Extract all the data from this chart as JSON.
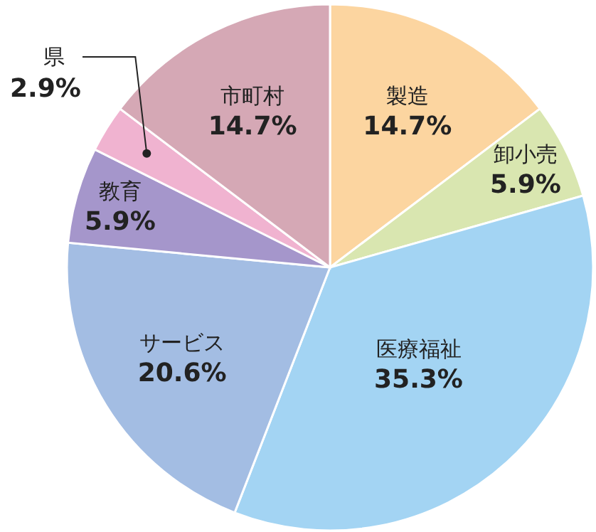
{
  "chart_data": {
    "type": "pie",
    "categories": [
      "製造",
      "卸小売",
      "医療福祉",
      "サービス",
      "教育",
      "県",
      "市町村"
    ],
    "values": [
      14.7,
      5.9,
      35.3,
      20.6,
      5.9,
      2.9,
      14.7
    ],
    "value_labels": [
      "14.7%",
      "5.9%",
      "35.3%",
      "20.6%",
      "5.9%",
      "2.9%",
      "14.7%"
    ],
    "colors": [
      "#fcd5a0",
      "#d9e6b0",
      "#a3d4f3",
      "#a3bde3",
      "#a596cb",
      "#f0b3d0",
      "#d5a8b5"
    ]
  }
}
